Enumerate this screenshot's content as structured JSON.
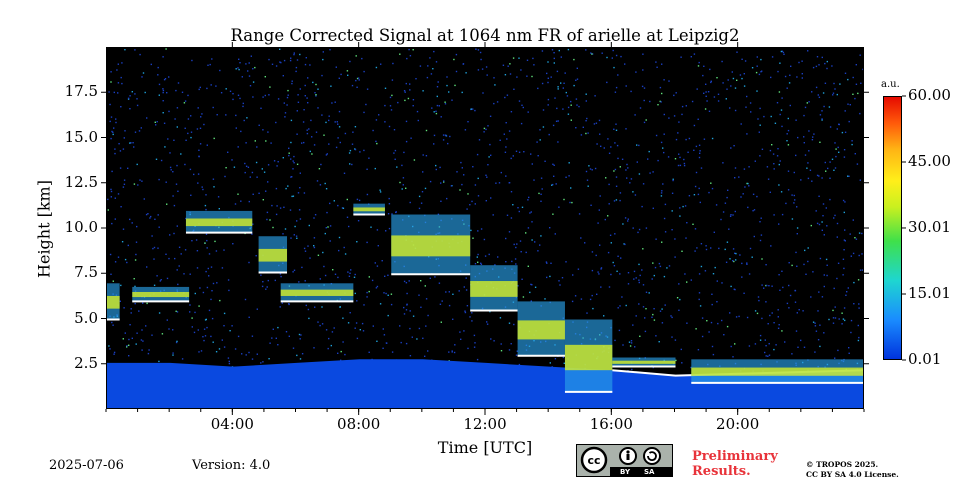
{
  "chart_data": {
    "type": "heatmap",
    "title": "Range Corrected Signal at 1064 nm FR of arielle at Leipzig2",
    "xlabel": "Time [UTC]",
    "ylabel": "Height [km]",
    "xlim": [
      0,
      24
    ],
    "ylim": [
      0,
      20
    ],
    "x_tick_values": [
      4,
      8,
      12,
      16,
      20
    ],
    "x_tick_labels": [
      "04:00",
      "08:00",
      "12:00",
      "16:00",
      "20:00"
    ],
    "y_tick_values": [
      2.5,
      5.0,
      7.5,
      10.0,
      12.5,
      15.0,
      17.5
    ],
    "y_tick_labels": [
      "2.5",
      "5.0",
      "7.5",
      "10.0",
      "12.5",
      "15.0",
      "17.5"
    ],
    "colorbar": {
      "unit": "a.u.",
      "min": 0.01,
      "max": 60.0,
      "tick_values": [
        0.01,
        15.01,
        30.01,
        45.0,
        60.0
      ],
      "tick_labels": [
        "0.01",
        "15.01",
        "30.01",
        "45.00",
        "60.00"
      ],
      "colors": [
        "#0033dd",
        "#1a8cff",
        "#1ed6d0",
        "#3fe04a",
        "#c9f01f",
        "#ffef1a",
        "#ffb414",
        "#ff5a0a",
        "#e60a00"
      ]
    },
    "boundary_layer_top_km": [
      [
        0.0,
        2.6
      ],
      [
        2.0,
        2.6
      ],
      [
        4.0,
        2.4
      ],
      [
        6.0,
        2.6
      ],
      [
        8.0,
        2.8
      ],
      [
        10.0,
        2.8
      ],
      [
        12.0,
        2.6
      ],
      [
        14.0,
        2.4
      ],
      [
        16.0,
        2.2
      ],
      [
        18.0,
        1.9
      ],
      [
        20.0,
        2.0
      ],
      [
        22.0,
        2.1
      ],
      [
        24.0,
        2.2
      ]
    ],
    "cloud_layers": [
      {
        "start": 0.0,
        "end": 0.4,
        "base": 5.0,
        "top": 7.0
      },
      {
        "start": 0.8,
        "end": 2.6,
        "base": 6.0,
        "top": 6.8
      },
      {
        "start": 2.5,
        "end": 4.6,
        "base": 9.8,
        "top": 11.0
      },
      {
        "start": 4.8,
        "end": 5.7,
        "base": 7.6,
        "top": 9.6
      },
      {
        "start": 5.5,
        "end": 7.8,
        "base": 6.0,
        "top": 7.0
      },
      {
        "start": 7.8,
        "end": 8.8,
        "base": 10.8,
        "top": 11.4
      },
      {
        "start": 9.0,
        "end": 11.5,
        "base": 7.5,
        "top": 10.8
      },
      {
        "start": 11.5,
        "end": 13.0,
        "base": 5.5,
        "top": 8.0
      },
      {
        "start": 13.0,
        "end": 14.5,
        "base": 3.0,
        "top": 6.0
      },
      {
        "start": 14.5,
        "end": 16.0,
        "base": 1.0,
        "top": 5.0
      },
      {
        "start": 16.0,
        "end": 18.0,
        "base": 2.4,
        "top": 2.9
      },
      {
        "start": 18.5,
        "end": 24.0,
        "base": 1.5,
        "top": 2.8
      }
    ]
  },
  "footer": {
    "date": "2025-07-06",
    "version": "Version: 4.0",
    "license_badge": {
      "by": "BY",
      "sa": "SA"
    },
    "preliminary": [
      "Preliminary",
      "Results."
    ],
    "copyright": [
      "© TROPOS 2025.",
      "CC BY SA 4.0 License."
    ]
  }
}
